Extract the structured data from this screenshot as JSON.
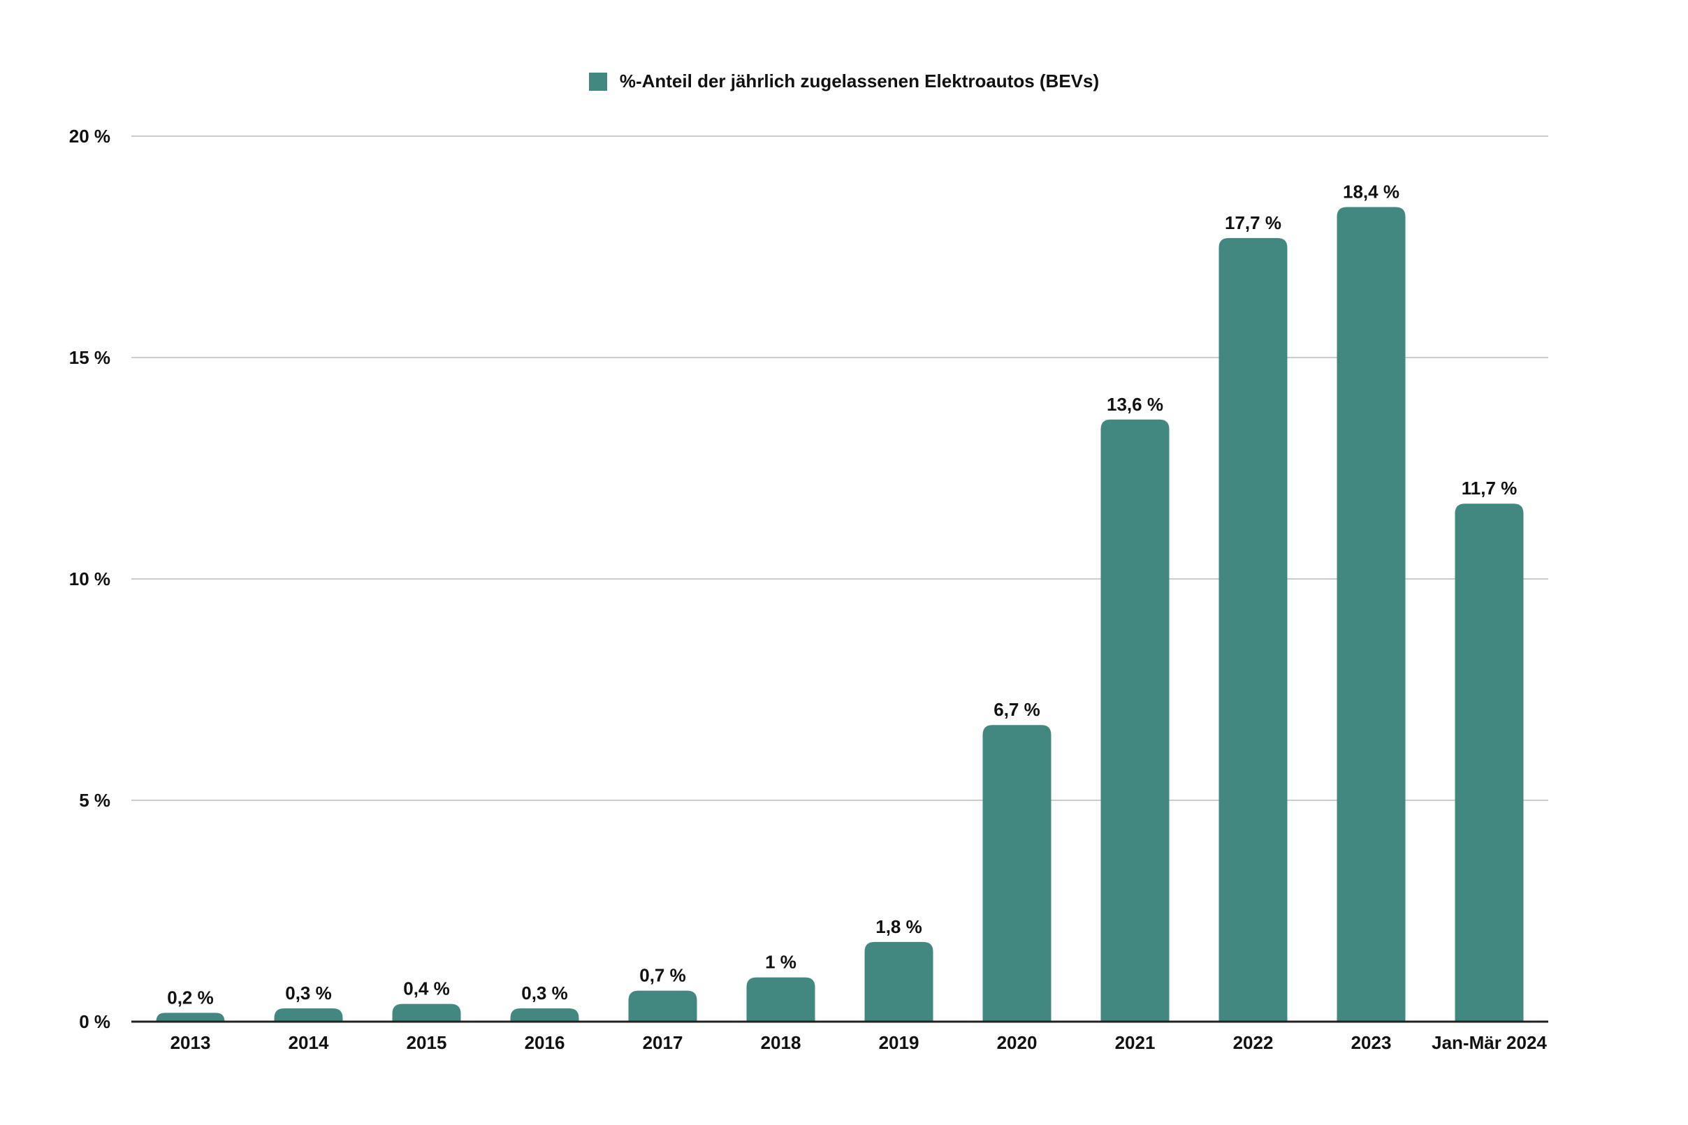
{
  "chart_data": {
    "type": "bar",
    "categories": [
      "2013",
      "2014",
      "2015",
      "2016",
      "2017",
      "2018",
      "2019",
      "2020",
      "2021",
      "2022",
      "2023",
      "Jan-Mär 2024"
    ],
    "series": [
      {
        "name": "%-Anteil der jährlich zugelassenen Elektroautos (BEVs)",
        "values": [
          0.2,
          0.3,
          0.4,
          0.3,
          0.7,
          1,
          1.8,
          6.7,
          13.6,
          17.7,
          18.4,
          11.7
        ],
        "data_labels": [
          "0,2 %",
          "0,3 %",
          "0,4 %",
          "0,3 %",
          "0,7 %",
          "1 %",
          "1,8 %",
          "6,7 %",
          "13,6 %",
          "17,7 %",
          "18,4 %",
          "11,7 %"
        ],
        "color": "#428880"
      }
    ],
    "y_ticks": [
      0,
      5,
      10,
      15,
      20
    ],
    "y_tick_labels": [
      "0 %",
      "5 %",
      "10 %",
      "15 %",
      "20 %"
    ],
    "ylim": [
      0,
      20
    ],
    "grid": true,
    "legend_position": "top-center",
    "colors": {
      "bar": "#428880",
      "grid": "#cccccc",
      "axis": "#222222"
    }
  }
}
